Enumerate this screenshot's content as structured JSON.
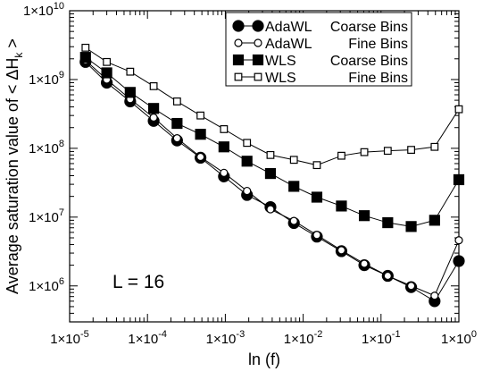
{
  "chart_data": {
    "type": "line",
    "xlabel": "ln (f)",
    "ylabel": "Average saturation value of < ΔH",
    "ylabel_sub": "k",
    "ylabel_close": " >",
    "xscale": "log",
    "yscale": "log",
    "xlim": [
      1e-05,
      1
    ],
    "ylim": [
      300000,
      10000000000
    ],
    "x_ticks": [
      {
        "value": 1e-05,
        "base": "1×10",
        "exp": "-5"
      },
      {
        "value": 0.0001,
        "base": "1×10",
        "exp": "-4"
      },
      {
        "value": 0.001,
        "base": "1×10",
        "exp": "-3"
      },
      {
        "value": 0.01,
        "base": "1×10",
        "exp": "-2"
      },
      {
        "value": 0.1,
        "base": "1×10",
        "exp": "-1"
      },
      {
        "value": 1,
        "base": "1×10",
        "exp": "0"
      }
    ],
    "y_ticks": [
      {
        "value": 1000000.0,
        "base": "1×10",
        "exp": "6"
      },
      {
        "value": 10000000.0,
        "base": "1×10",
        "exp": "7"
      },
      {
        "value": 100000000.0,
        "base": "1×10",
        "exp": "8"
      },
      {
        "value": 1000000000.0,
        "base": "1×10",
        "exp": "9"
      },
      {
        "value": 10000000000.0,
        "base": "1×10",
        "exp": "10"
      }
    ],
    "annotation": "L = 16",
    "grid": false,
    "legend_position": "top-right",
    "x": [
      1.6e-05,
      3e-05,
      6e-05,
      0.00012,
      0.00024,
      0.00048,
      0.00096,
      0.0019,
      0.0038,
      0.0076,
      0.015,
      0.031,
      0.061,
      0.122,
      0.244,
      0.488,
      1.0
    ],
    "series": [
      {
        "name": "AdaWL",
        "bins": "Coarse Bins",
        "marker": "circle",
        "filled": true,
        "values": [
          1800000000.0,
          900000000.0,
          480000000.0,
          250000000.0,
          130000000.0,
          73000000.0,
          39000000.0,
          21000000.0,
          14000000.0,
          8200000.0,
          5200000.0,
          3200000.0,
          2000000.0,
          1400000.0,
          960000.0,
          600000.0,
          2300000.0
        ]
      },
      {
        "name": "AdaWL",
        "bins": "Fine Bins",
        "marker": "circle",
        "filled": false,
        "values": [
          1900000000.0,
          1000000000.0,
          520000000.0,
          280000000.0,
          140000000.0,
          75000000.0,
          44000000.0,
          24000000.0,
          13000000.0,
          8800000.0,
          5500000.0,
          3300000.0,
          2100000.0,
          1400000.0,
          1000000.0,
          720000.0,
          4600000.0
        ]
      },
      {
        "name": "WLS",
        "bins": "Coarse Bins",
        "marker": "square",
        "filled": true,
        "values": [
          2100000000.0,
          1250000000.0,
          650000000.0,
          380000000.0,
          230000000.0,
          160000000.0,
          105000000.0,
          65000000.0,
          43000000.0,
          28000000.0,
          19500000.0,
          14500000.0,
          10500000.0,
          8300000.0,
          7300000.0,
          9000000.0,
          35000000.0
        ]
      },
      {
        "name": "WLS",
        "bins": "Fine Bins",
        "marker": "square",
        "filled": false,
        "values": [
          2900000000.0,
          1800000000.0,
          1300000000.0,
          800000000.0,
          480000000.0,
          300000000.0,
          190000000.0,
          120000000.0,
          80000000.0,
          68000000.0,
          57000000.0,
          78000000.0,
          88000000.0,
          92000000.0,
          95000000.0,
          105000000.0,
          370000000.0
        ]
      }
    ]
  }
}
